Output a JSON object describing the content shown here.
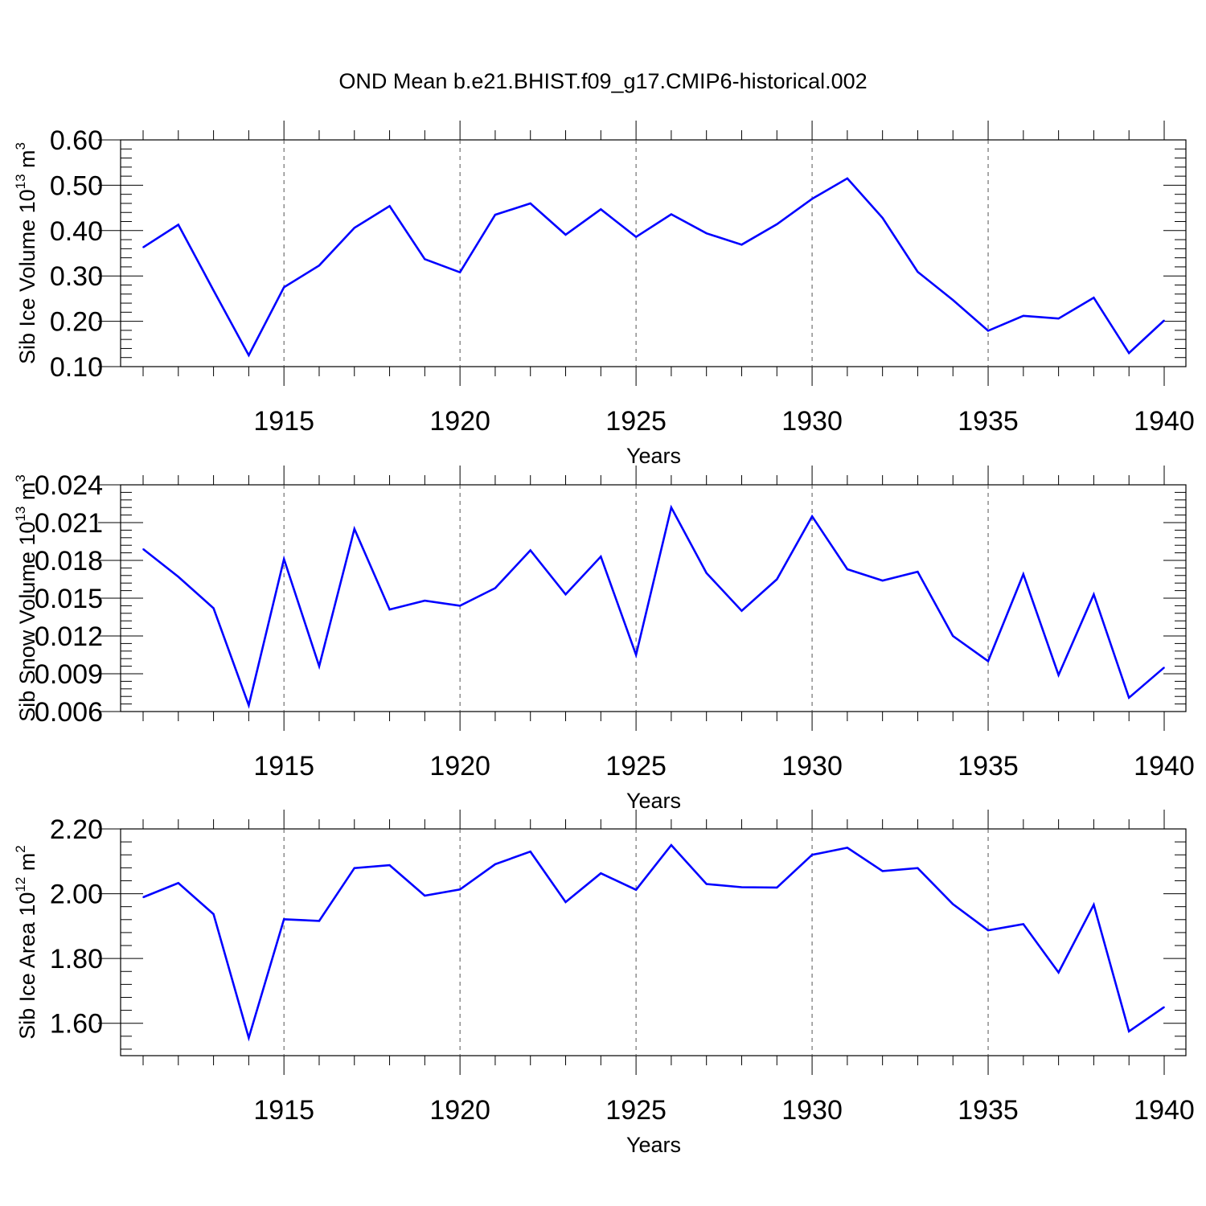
{
  "figure": {
    "title": "OND Mean b.e21.BHIST.f09_g17.CMIP6-historical.002"
  },
  "chart_data": [
    {
      "type": "line",
      "xlabel": "Years",
      "ylabel_main": "Sib Ice Volume 10",
      "ylabel_exp": "13",
      "ylabel_unit": " m",
      "ylabel_unit_exp": "3",
      "xlim": [
        1911,
        1940
      ],
      "ylim": [
        0.1,
        0.6
      ],
      "yticks": [
        "0.10",
        "0.20",
        "0.30",
        "0.40",
        "0.50",
        "0.60"
      ],
      "ytick_values": [
        0.1,
        0.2,
        0.3,
        0.4,
        0.5,
        0.6
      ],
      "xticks": [
        "1915",
        "1920",
        "1925",
        "1930",
        "1935",
        "1940"
      ],
      "xtick_values": [
        1915,
        1920,
        1925,
        1930,
        1935,
        1940
      ],
      "grid_x": true,
      "line_color": "#0000ff",
      "x": [
        1911,
        1912,
        1913,
        1914,
        1915,
        1916,
        1917,
        1918,
        1919,
        1920,
        1921,
        1922,
        1923,
        1924,
        1925,
        1926,
        1927,
        1928,
        1929,
        1930,
        1931,
        1932,
        1933,
        1934,
        1935,
        1936,
        1937,
        1938,
        1939,
        1940
      ],
      "values": [
        0.363,
        0.413,
        0.268,
        0.125,
        0.275,
        0.323,
        0.406,
        0.454,
        0.337,
        0.308,
        0.435,
        0.46,
        0.391,
        0.447,
        0.386,
        0.436,
        0.394,
        0.369,
        0.414,
        0.47,
        0.515,
        0.428,
        0.309,
        0.247,
        0.179,
        0.212,
        0.206,
        0.252,
        0.13,
        0.202
      ]
    },
    {
      "type": "line",
      "xlabel": "Years",
      "ylabel_main": "Sib Snow Volume 10",
      "ylabel_exp": "13",
      "ylabel_unit": " m",
      "ylabel_unit_exp": "3",
      "xlim": [
        1911,
        1940
      ],
      "ylim": [
        0.006,
        0.024
      ],
      "yticks": [
        "0.006",
        "0.009",
        "0.012",
        "0.015",
        "0.018",
        "0.021",
        "0.024"
      ],
      "ytick_values": [
        0.006,
        0.009,
        0.012,
        0.015,
        0.018,
        0.021,
        0.024
      ],
      "xticks": [
        "1915",
        "1920",
        "1925",
        "1930",
        "1935",
        "1940"
      ],
      "xtick_values": [
        1915,
        1920,
        1925,
        1930,
        1935,
        1940
      ],
      "grid_x": true,
      "line_color": "#0000ff",
      "x": [
        1911,
        1912,
        1913,
        1914,
        1915,
        1916,
        1917,
        1918,
        1919,
        1920,
        1921,
        1922,
        1923,
        1924,
        1925,
        1926,
        1927,
        1928,
        1929,
        1930,
        1931,
        1932,
        1933,
        1934,
        1935,
        1936,
        1937,
        1938,
        1939,
        1940
      ],
      "values": [
        0.0189,
        0.0167,
        0.0142,
        0.0065,
        0.0181,
        0.0096,
        0.0205,
        0.0141,
        0.0148,
        0.0144,
        0.0158,
        0.0188,
        0.0153,
        0.0183,
        0.0105,
        0.0222,
        0.017,
        0.014,
        0.0165,
        0.0215,
        0.0173,
        0.0164,
        0.0171,
        0.012,
        0.01,
        0.0169,
        0.0089,
        0.0153,
        0.0071,
        0.0095
      ]
    },
    {
      "type": "line",
      "xlabel": "Years",
      "ylabel_main": "Sib Ice Area 10",
      "ylabel_exp": "12",
      "ylabel_unit": " m",
      "ylabel_unit_exp": "2",
      "xlim": [
        1911,
        1940
      ],
      "ylim": [
        1.5,
        2.2
      ],
      "yticks": [
        "1.60",
        "1.80",
        "2.00",
        "2.20"
      ],
      "ytick_values": [
        1.6,
        1.8,
        2.0,
        2.2
      ],
      "xticks": [
        "1915",
        "1920",
        "1925",
        "1930",
        "1935",
        "1940"
      ],
      "xtick_values": [
        1915,
        1920,
        1925,
        1930,
        1935,
        1940
      ],
      "grid_x": true,
      "line_color": "#0000ff",
      "x": [
        1911,
        1912,
        1913,
        1914,
        1915,
        1916,
        1917,
        1918,
        1919,
        1920,
        1921,
        1922,
        1923,
        1924,
        1925,
        1926,
        1927,
        1928,
        1929,
        1930,
        1931,
        1932,
        1933,
        1934,
        1935,
        1936,
        1937,
        1938,
        1939,
        1940
      ],
      "values": [
        1.989,
        2.033,
        1.937,
        1.555,
        1.921,
        1.916,
        2.079,
        2.088,
        1.994,
        2.013,
        2.091,
        2.13,
        1.974,
        2.063,
        2.012,
        2.15,
        2.03,
        2.02,
        2.019,
        2.12,
        2.142,
        2.07,
        2.079,
        1.968,
        1.887,
        1.906,
        1.757,
        1.966,
        1.575,
        1.65
      ]
    }
  ]
}
